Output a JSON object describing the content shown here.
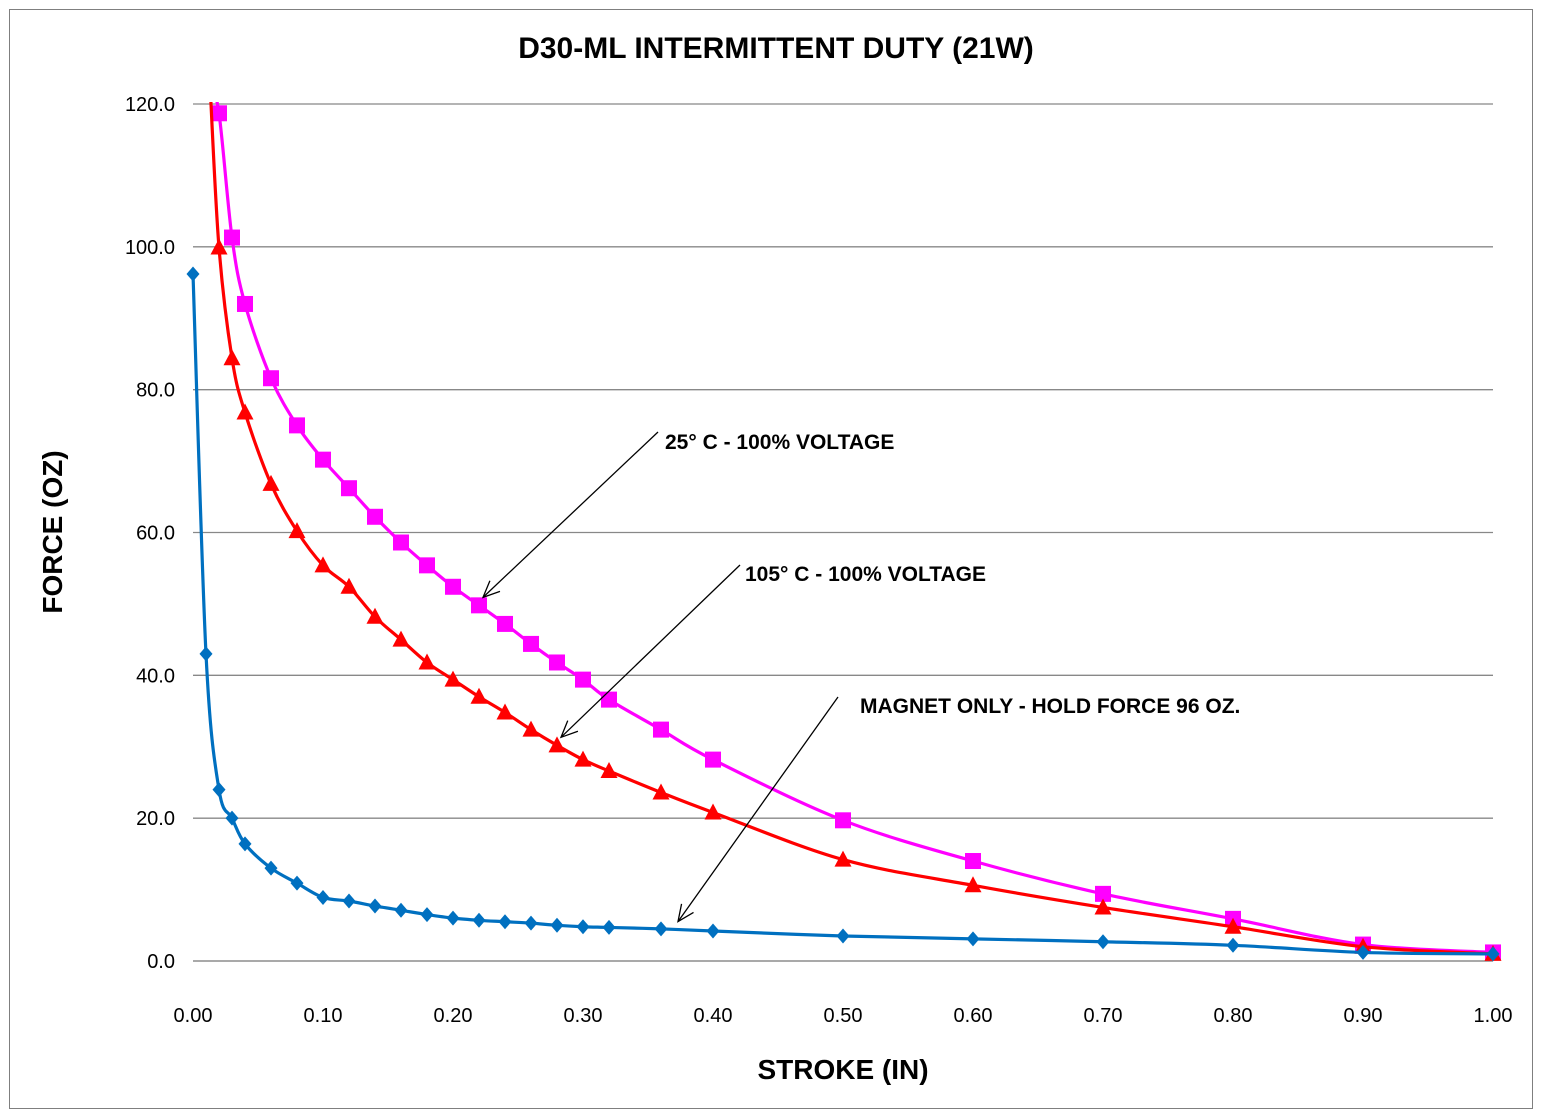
{
  "chart_data": {
    "type": "line",
    "title": "D30-ML INTERMITTENT DUTY (21W)",
    "xlabel": "STROKE (IN)",
    "ylabel": "FORCE (OZ)",
    "xlim": [
      0,
      1.0
    ],
    "ylim": [
      0,
      120
    ],
    "x_ticks": [
      "0.00",
      "0.10",
      "0.20",
      "0.30",
      "0.40",
      "0.50",
      "0.60",
      "0.70",
      "0.80",
      "0.90",
      "1.00"
    ],
    "y_ticks": [
      "0.0",
      "20.0",
      "40.0",
      "60.0",
      "80.0",
      "100.0",
      "120.0"
    ],
    "grid": "horizontal",
    "legend": "none",
    "series": [
      {
        "color": "#ff00ff",
        "marker": "square",
        "x": [
          0.02,
          0.03,
          0.04,
          0.06,
          0.08,
          0.1,
          0.12,
          0.14,
          0.16,
          0.18,
          0.2,
          0.22,
          0.24,
          0.26,
          0.28,
          0.3,
          0.32,
          0.36,
          0.4,
          0.5,
          0.6,
          0.7,
          0.8,
          0.9,
          1.0
        ],
        "y": [
          118.7,
          101.3,
          92.0,
          81.6,
          75.0,
          70.2,
          66.2,
          62.2,
          58.6,
          55.4,
          52.4,
          49.8,
          47.2,
          44.4,
          41.8,
          39.4,
          36.6,
          32.4,
          28.2,
          19.7,
          14.0,
          9.4,
          5.9,
          2.3,
          1.2
        ]
      },
      {
        "color": "#ff0000",
        "marker": "triangle",
        "x": [
          0.02,
          0.03,
          0.04,
          0.06,
          0.08,
          0.1,
          0.12,
          0.14,
          0.16,
          0.18,
          0.2,
          0.22,
          0.24,
          0.26,
          0.28,
          0.3,
          0.32,
          0.36,
          0.4,
          0.5,
          0.6,
          0.7,
          0.8,
          0.9,
          1.0
        ],
        "y": [
          99.9,
          84.4,
          76.8,
          66.8,
          60.2,
          55.4,
          52.4,
          48.2,
          45.0,
          41.8,
          39.4,
          37.0,
          34.8,
          32.4,
          30.2,
          28.2,
          26.6,
          23.6,
          20.8,
          14.2,
          10.6,
          7.5,
          4.8,
          2.0,
          1.0
        ]
      },
      {
        "color": "#0070c0",
        "marker": "diamond",
        "x": [
          0.0,
          0.01,
          0.02,
          0.03,
          0.04,
          0.06,
          0.08,
          0.1,
          0.12,
          0.14,
          0.16,
          0.18,
          0.2,
          0.22,
          0.24,
          0.26,
          0.28,
          0.3,
          0.32,
          0.36,
          0.4,
          0.5,
          0.6,
          0.7,
          0.8,
          0.9,
          1.0
        ],
        "y": [
          96.2,
          43.0,
          24.0,
          20.0,
          16.4,
          13.0,
          10.9,
          8.9,
          8.4,
          7.7,
          7.1,
          6.5,
          6.0,
          5.7,
          5.5,
          5.3,
          5.0,
          4.8,
          4.7,
          4.5,
          4.2,
          3.5,
          3.1,
          2.7,
          2.2,
          1.2,
          1.0
        ]
      }
    ],
    "annotations": [
      {
        "text": "25° C - 100% VOLTAGE",
        "target_series": 0,
        "target_x": 0.22,
        "target_y": 49.8
      },
      {
        "text": "105° C - 100% VOLTAGE",
        "target_series": 1,
        "target_x": 0.28,
        "target_y": 30.2
      },
      {
        "text": "MAGNET ONLY - HOLD FORCE 96 OZ.",
        "target_series": 2,
        "target_x": 0.37,
        "target_y": 4.4
      }
    ]
  }
}
